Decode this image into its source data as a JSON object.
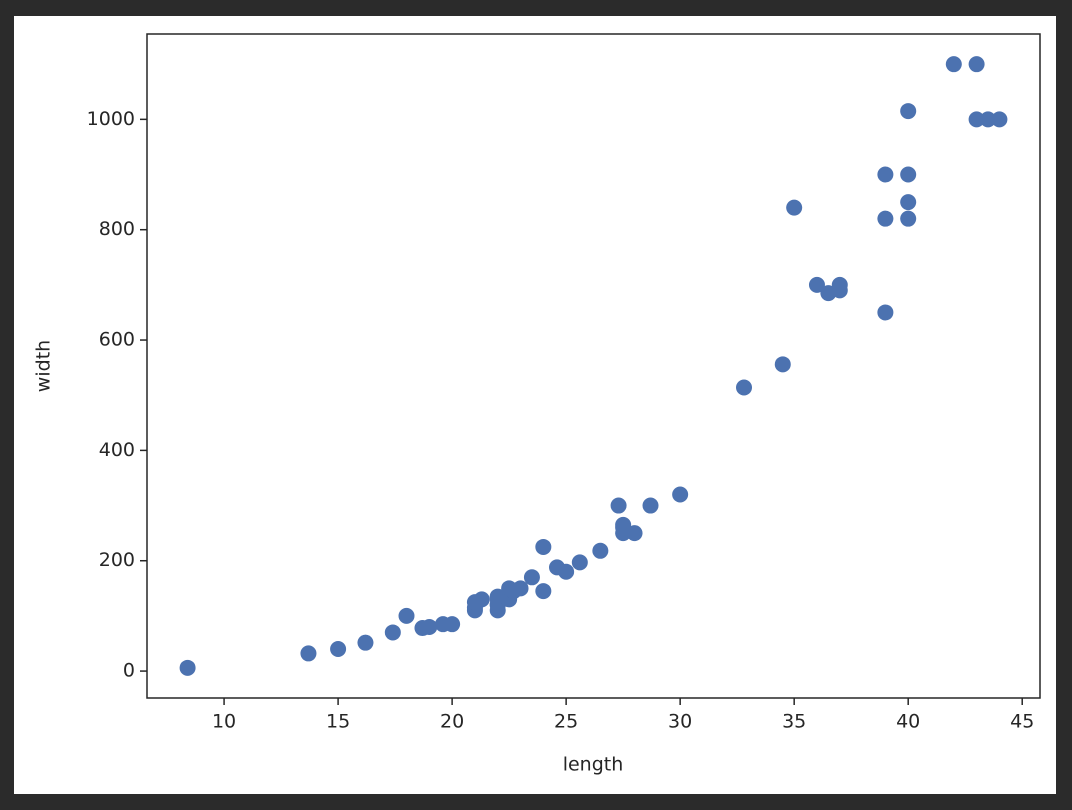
{
  "chart_data": {
    "type": "scatter",
    "xlabel": "length",
    "ylabel": "width",
    "x": [
      8.4,
      13.7,
      15.0,
      16.2,
      17.4,
      18.0,
      18.7,
      19.0,
      19.6,
      20.0,
      21.0,
      21.0,
      21.0,
      21.3,
      22.0,
      22.0,
      22.0,
      22.0,
      22.0,
      22.5,
      22.5,
      22.7,
      23.0,
      23.5,
      24.0,
      24.0,
      24.6,
      25.0,
      25.6,
      26.5,
      27.3,
      27.5,
      27.5,
      27.5,
      28.0,
      28.7,
      30.0,
      32.8,
      34.5,
      35.0,
      36.5,
      36.0,
      37.0,
      37.0,
      39.0,
      39.0,
      39.0,
      40.0,
      40.0,
      40.0,
      40.0,
      42.0,
      43.0,
      43.0,
      43.5,
      44.0
    ],
    "values": [
      5.9,
      32.0,
      40.0,
      51.5,
      70.0,
      100.0,
      78.0,
      80.0,
      85.0,
      85.0,
      110.0,
      115.0,
      125.0,
      130.0,
      120.0,
      120.0,
      130.0,
      135.0,
      110.0,
      130.0,
      150.0,
      145.0,
      150.0,
      170.0,
      225.0,
      145.0,
      188.0,
      180.0,
      197.0,
      218.0,
      300.0,
      260.0,
      265.0,
      250.0,
      250.0,
      300.0,
      320.0,
      514.0,
      556.0,
      840.0,
      685.0,
      700.0,
      700.0,
      690.0,
      900.0,
      650.0,
      820.0,
      850.0,
      900.0,
      1015.0,
      820.0,
      1100.0,
      1000.0,
      1100.0,
      1000.0,
      1000.0
    ],
    "color": "#4c72b0",
    "xlim": [
      6.62,
      45.78
    ],
    "ylim": [
      -48.8,
      1154.7
    ],
    "xticks": [
      10,
      15,
      20,
      25,
      30,
      35,
      40,
      45
    ],
    "yticks": [
      0,
      200,
      400,
      600,
      800,
      1000
    ]
  }
}
